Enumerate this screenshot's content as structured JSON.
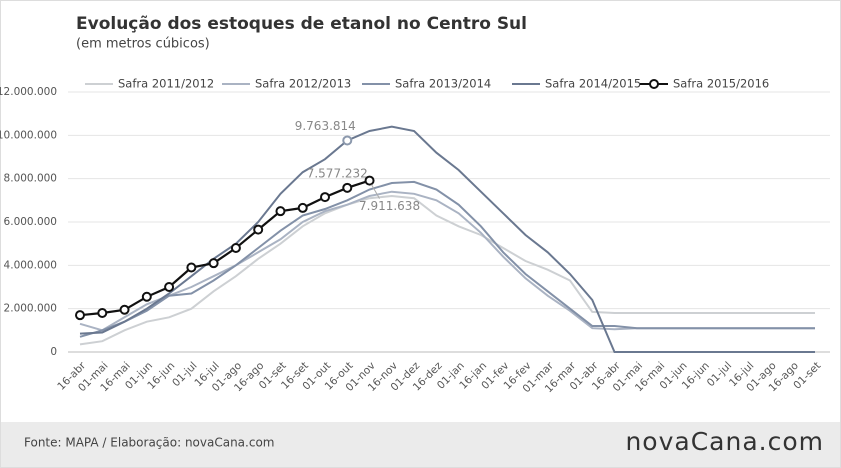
{
  "chart_data": {
    "type": "line",
    "title": "Evolução dos estoques de etanol no Centro Sul",
    "subtitle": "(em metros cúbicos)",
    "source": "Fonte: MAPA / Elaboração: novaCana.com",
    "logo": "novaCana.com",
    "categories": [
      "16-abr",
      "01-mai",
      "16-mai",
      "01-jun",
      "16-jun",
      "01-jul",
      "16-jul",
      "01-ago",
      "16-ago",
      "01-set",
      "16-set",
      "01-out",
      "16-out",
      "01-nov",
      "16-nov",
      "01-dez",
      "16-dez",
      "01-jan",
      "16-jan",
      "01-fev",
      "16-fev",
      "01-mar",
      "16-mar",
      "01-abr",
      "16-abr",
      "01-mai",
      "16-mai",
      "01-jun",
      "16-jun",
      "01-jul",
      "16-jul",
      "01-ago",
      "16-ago",
      "01-set"
    ],
    "ylim": [
      0,
      12000000
    ],
    "yticks": [
      0,
      {
        "value": 2000000,
        "label": "2.000.000"
      },
      {
        "value": 4000000,
        "label": "4.000.000"
      },
      {
        "value": 6000000,
        "label": "6.000.000"
      },
      {
        "value": 8000000,
        "label": "8.000.000"
      },
      {
        "value": 10000000,
        "label": "10.000.000"
      },
      {
        "value": 12000000,
        "label": "12.000.000"
      }
    ],
    "grid": true,
    "legend": "top",
    "series": [
      {
        "name": "Safra 2011/2012",
        "color": "#cdd0d3",
        "marker": false,
        "values": [
          350000,
          500000,
          1000000,
          1400000,
          1600000,
          2000000,
          2800000,
          3500000,
          4300000,
          5000000,
          5800000,
          6400000,
          6800000,
          7100000,
          7200000,
          7100000,
          6300000,
          5800000,
          5400000,
          4800000,
          4200000,
          3800000,
          3300000,
          1850000,
          1800000,
          1800000,
          1800000,
          1800000,
          1800000,
          1800000,
          1800000,
          1800000,
          1800000,
          1800000
        ]
      },
      {
        "name": "Safra 2012/2013",
        "color": "#aab3c3",
        "marker": false,
        "values": [
          1300000,
          1000000,
          1600000,
          2200000,
          2600000,
          3000000,
          3500000,
          4000000,
          4600000,
          5200000,
          6000000,
          6500000,
          6800000,
          7200000,
          7400000,
          7300000,
          7000000,
          6400000,
          5500000,
          4400000,
          3400000,
          2600000,
          1900000,
          1100000,
          1050000,
          1100000,
          1100000,
          1100000,
          1100000,
          1100000,
          1100000,
          1100000,
          1100000,
          1100000
        ]
      },
      {
        "name": "Safra 2013/2014",
        "color": "#8391a8",
        "marker": false,
        "values": [
          700000,
          1000000,
          1400000,
          1900000,
          2600000,
          2700000,
          3300000,
          4000000,
          4800000,
          5600000,
          6300000,
          6600000,
          7000000,
          7500000,
          7800000,
          7850000,
          7500000,
          6800000,
          5800000,
          4600000,
          3600000,
          2800000,
          2000000,
          1200000,
          1200000,
          1100000,
          1100000,
          1100000,
          1100000,
          1100000,
          1100000,
          1100000,
          1100000,
          1100000
        ]
      },
      {
        "name": "Safra 2014/2015",
        "color": "#6a7890",
        "marker": false,
        "values": [
          850000,
          900000,
          1400000,
          2000000,
          2700000,
          3500000,
          4300000,
          5000000,
          6000000,
          7300000,
          8300000,
          8900000,
          9763814,
          10200000,
          10400000,
          10200000,
          9200000,
          8400000,
          7400000,
          6400000,
          5400000,
          4600000,
          3600000,
          2400000,
          0,
          0,
          0,
          0,
          0,
          0,
          0,
          0,
          0,
          0
        ],
        "value_labels": [
          null,
          null,
          null,
          null,
          null,
          null,
          null,
          null,
          null,
          null,
          null,
          null,
          "9.763.814",
          null,
          null,
          null,
          null,
          null,
          null,
          null,
          null,
          null,
          null,
          null,
          null,
          null,
          null,
          null,
          null,
          null,
          null,
          null,
          null,
          null
        ]
      },
      {
        "name": "Safra 2015/2016",
        "color": "#111111",
        "marker": true,
        "values": [
          1700000,
          1800000,
          1950000,
          2550000,
          3000000,
          3900000,
          4100000,
          4800000,
          5650000,
          6500000,
          6650000,
          7150000,
          7577232,
          7911638,
          null,
          null,
          null,
          null,
          null,
          null,
          null,
          null,
          null,
          null,
          null,
          null,
          null,
          null,
          null,
          null,
          null,
          null,
          null,
          null
        ],
        "value_labels": [
          null,
          null,
          null,
          null,
          null,
          null,
          null,
          null,
          null,
          null,
          null,
          null,
          "7.577.232",
          "7.911.638",
          null,
          null,
          null,
          null,
          null,
          null,
          null,
          null,
          null,
          null,
          null,
          null,
          null,
          null,
          null,
          null,
          null,
          null,
          null,
          null
        ]
      }
    ]
  }
}
